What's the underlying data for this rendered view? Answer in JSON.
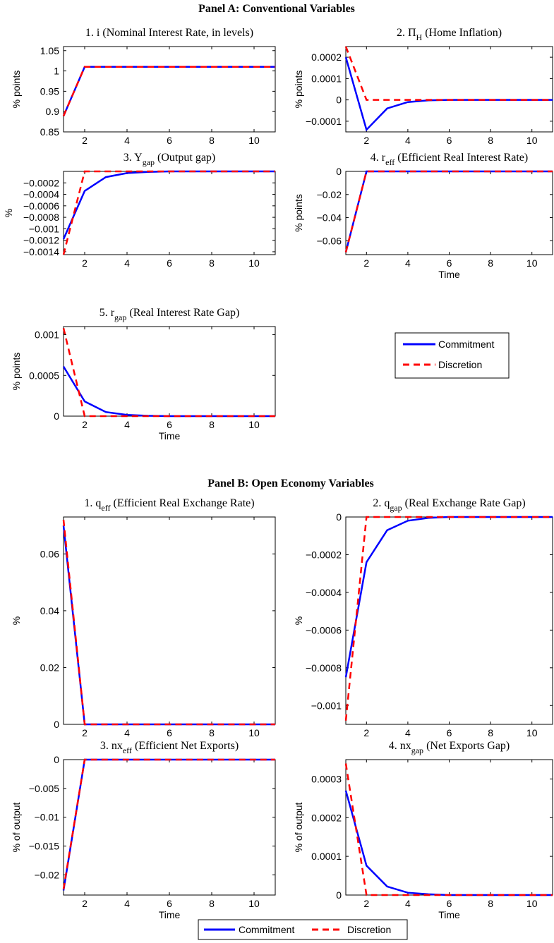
{
  "panels": [
    {
      "title": "Panel A: Conventional Variables"
    },
    {
      "title": "Panel B: Open Economy Variables"
    }
  ],
  "legend": {
    "commitment": "Commitment",
    "discretion": "Discretion"
  },
  "colors": {
    "commitment": "#0000ff",
    "discretion": "#ff0000",
    "axis": "#000000"
  },
  "chart_data": [
    {
      "type": "line",
      "title": {
        "prefix": "1. i ",
        "sub": "",
        "suffix": " (Nominal Interest Rate, in levels)"
      },
      "xlabel": "",
      "ylabel": "% points",
      "xlim": [
        1,
        11
      ],
      "ylim": [
        0.85,
        1.06
      ],
      "xticks": [
        2,
        4,
        6,
        8,
        10
      ],
      "yticks": [
        0.85,
        0.9,
        0.95,
        1,
        1.05
      ],
      "yticklabels": [
        "0.85",
        "0.9",
        "0.95",
        "1",
        "1.05"
      ],
      "x": [
        1,
        2,
        3,
        4,
        5,
        6,
        7,
        8,
        9,
        10,
        11
      ],
      "series": [
        {
          "name": "Commitment",
          "values": [
            0.889,
            1.01,
            1.01,
            1.01,
            1.01,
            1.01,
            1.01,
            1.01,
            1.01,
            1.01,
            1.01
          ]
        },
        {
          "name": "Discretion",
          "values": [
            0.889,
            1.01,
            1.01,
            1.01,
            1.01,
            1.01,
            1.01,
            1.01,
            1.01,
            1.01,
            1.01
          ]
        }
      ]
    },
    {
      "type": "line",
      "title": {
        "prefix": "2. Π",
        "sub": "H",
        "suffix": " (Home Inflation)"
      },
      "xlabel": "",
      "ylabel": "% points",
      "xlim": [
        1,
        11
      ],
      "ylim": [
        -0.00015,
        0.00025
      ],
      "xticks": [
        2,
        4,
        6,
        8,
        10
      ],
      "yticks": [
        -0.0001,
        0,
        0.0001,
        0.0002
      ],
      "yticklabels": [
        "−0.0001",
        "0",
        "0.0001",
        "0.0002"
      ],
      "x": [
        1,
        2,
        3,
        4,
        5,
        6,
        7,
        8,
        9,
        10,
        11
      ],
      "series": [
        {
          "name": "Commitment",
          "values": [
            0.0002,
            -0.00014,
            -4e-05,
            -1e-05,
            -2e-06,
            0,
            0,
            0,
            0,
            0,
            0
          ]
        },
        {
          "name": "Discretion",
          "values": [
            0.00025,
            0,
            0,
            0,
            0,
            0,
            0,
            0,
            0,
            0,
            0
          ]
        }
      ]
    },
    {
      "type": "line",
      "title": {
        "prefix": "3. Y",
        "sub": "gap",
        "suffix": " (Output gap)"
      },
      "xlabel": "",
      "ylabel": "%",
      "xlim": [
        1,
        11
      ],
      "ylim": [
        -0.00145,
        0
      ],
      "xticks": [
        2,
        4,
        6,
        8,
        10
      ],
      "yticks": [
        -0.0014,
        -0.0012,
        -0.001,
        -0.0008,
        -0.0006,
        -0.0004,
        -0.0002
      ],
      "yticklabels": [
        "−0.0014",
        "−0.0012",
        "−0.001",
        "−0.0008",
        "−0.0006",
        "−0.0004",
        "−0.0002"
      ],
      "x": [
        1,
        2,
        3,
        4,
        5,
        6,
        7,
        8,
        9,
        10,
        11
      ],
      "series": [
        {
          "name": "Commitment",
          "values": [
            -0.00118,
            -0.00034,
            -0.0001,
            -3e-05,
            -1e-05,
            0,
            0,
            0,
            0,
            0,
            0
          ]
        },
        {
          "name": "Discretion",
          "values": [
            -0.00145,
            0,
            0,
            0,
            0,
            0,
            0,
            0,
            0,
            0,
            0
          ]
        }
      ]
    },
    {
      "type": "line",
      "title": {
        "prefix": "4. r",
        "sub": "eff",
        "suffix": " (Efficient Real Interest Rate)"
      },
      "xlabel": "Time",
      "ylabel": "% points",
      "xlim": [
        1,
        11
      ],
      "ylim": [
        -0.072,
        0
      ],
      "xticks": [
        2,
        4,
        6,
        8,
        10
      ],
      "yticks": [
        -0.06,
        -0.04,
        -0.02,
        0
      ],
      "yticklabels": [
        "−0.06",
        "−0.04",
        "−0.02",
        "0"
      ],
      "x": [
        1,
        2,
        3,
        4,
        5,
        6,
        7,
        8,
        9,
        10,
        11
      ],
      "series": [
        {
          "name": "Commitment",
          "values": [
            -0.07,
            0,
            0,
            0,
            0,
            0,
            0,
            0,
            0,
            0,
            0
          ]
        },
        {
          "name": "Discretion",
          "values": [
            -0.07,
            0,
            0,
            0,
            0,
            0,
            0,
            0,
            0,
            0,
            0
          ]
        }
      ]
    },
    {
      "type": "line",
      "title": {
        "prefix": "5. r",
        "sub": "gap",
        "suffix": " (Real Interest Rate Gap)"
      },
      "xlabel": "Time",
      "ylabel": "% points",
      "xlim": [
        1,
        11
      ],
      "ylim": [
        0,
        0.0011
      ],
      "xticks": [
        2,
        4,
        6,
        8,
        10
      ],
      "yticks": [
        0,
        0.0005,
        0.001
      ],
      "yticklabels": [
        "0",
        "0.0005",
        "0.001"
      ],
      "x": [
        1,
        2,
        3,
        4,
        5,
        6,
        7,
        8,
        9,
        10,
        11
      ],
      "series": [
        {
          "name": "Commitment",
          "values": [
            0.00061,
            0.00018,
            5e-05,
            1.5e-05,
            4e-06,
            0,
            0,
            0,
            0,
            0,
            0
          ]
        },
        {
          "name": "Discretion",
          "values": [
            0.00108,
            0,
            0,
            0,
            0,
            0,
            0,
            0,
            0,
            0,
            0
          ]
        }
      ]
    },
    {
      "type": "line",
      "title": {
        "prefix": "1. q",
        "sub": "eff",
        "suffix": " (Efficient Real Exchange Rate)"
      },
      "xlabel": "",
      "ylabel": "%",
      "xlim": [
        1,
        11
      ],
      "ylim": [
        0,
        0.073
      ],
      "xticks": [
        2,
        4,
        6,
        8,
        10
      ],
      "yticks": [
        0,
        0.02,
        0.04,
        0.06
      ],
      "yticklabels": [
        "0",
        "0.02",
        "0.04",
        "0.06"
      ],
      "x": [
        1,
        2,
        3,
        4,
        5,
        6,
        7,
        8,
        9,
        10,
        11
      ],
      "series": [
        {
          "name": "Commitment",
          "values": [
            0.07,
            0,
            0,
            0,
            0,
            0,
            0,
            0,
            0,
            0,
            0
          ]
        },
        {
          "name": "Discretion",
          "values": [
            0.072,
            0,
            0,
            0,
            0,
            0,
            0,
            0,
            0,
            0,
            0
          ]
        }
      ]
    },
    {
      "type": "line",
      "title": {
        "prefix": "2. q",
        "sub": "gap",
        "suffix": " (Real Exchange Rate Gap)"
      },
      "xlabel": "",
      "ylabel": "%",
      "xlim": [
        1,
        11
      ],
      "ylim": [
        -0.0011,
        0
      ],
      "xticks": [
        2,
        4,
        6,
        8,
        10
      ],
      "yticks": [
        -0.001,
        -0.0008,
        -0.0006,
        -0.0004,
        -0.0002,
        0
      ],
      "yticklabels": [
        "−0.001",
        "−0.0008",
        "−0.0006",
        "−0.0004",
        "−0.0002",
        "0"
      ],
      "x": [
        1,
        2,
        3,
        4,
        5,
        6,
        7,
        8,
        9,
        10,
        11
      ],
      "series": [
        {
          "name": "Commitment",
          "values": [
            -0.00085,
            -0.00024,
            -7e-05,
            -2e-05,
            -5e-06,
            0,
            0,
            0,
            0,
            0,
            0
          ]
        },
        {
          "name": "Discretion",
          "values": [
            -0.00108,
            0,
            0,
            0,
            0,
            0,
            0,
            0,
            0,
            0,
            0
          ]
        }
      ]
    },
    {
      "type": "line",
      "title": {
        "prefix": "3. nx",
        "sub": "eff",
        "suffix": " (Efficient Net Exports)"
      },
      "xlabel": "Time",
      "ylabel": "% of output",
      "xlim": [
        1,
        11
      ],
      "ylim": [
        -0.0235,
        0
      ],
      "xticks": [
        2,
        4,
        6,
        8,
        10
      ],
      "yticks": [
        -0.02,
        -0.015,
        -0.01,
        -0.005,
        0
      ],
      "yticklabels": [
        "−0.02",
        "−0.015",
        "−0.01",
        "−0.005",
        "0"
      ],
      "x": [
        1,
        2,
        3,
        4,
        5,
        6,
        7,
        8,
        9,
        10,
        11
      ],
      "series": [
        {
          "name": "Commitment",
          "values": [
            -0.0227,
            0,
            0,
            0,
            0,
            0,
            0,
            0,
            0,
            0,
            0
          ]
        },
        {
          "name": "Discretion",
          "values": [
            -0.0225,
            0,
            0,
            0,
            0,
            0,
            0,
            0,
            0,
            0,
            0
          ]
        }
      ]
    },
    {
      "type": "line",
      "title": {
        "prefix": "4. nx",
        "sub": "gap",
        "suffix": " (Net Exports Gap)"
      },
      "xlabel": "Time",
      "ylabel": "% of output",
      "xlim": [
        1,
        11
      ],
      "ylim": [
        0,
        0.00035
      ],
      "xticks": [
        2,
        4,
        6,
        8,
        10
      ],
      "yticks": [
        0,
        0.0001,
        0.0002,
        0.0003
      ],
      "yticklabels": [
        "0",
        "0.0001",
        "0.0002",
        "0.0003"
      ],
      "x": [
        1,
        2,
        3,
        4,
        5,
        6,
        7,
        8,
        9,
        10,
        11
      ],
      "series": [
        {
          "name": "Commitment",
          "values": [
            0.00027,
            7.6e-05,
            2.2e-05,
            6e-06,
            2e-06,
            0,
            0,
            0,
            0,
            0,
            0
          ]
        },
        {
          "name": "Discretion",
          "values": [
            0.00034,
            0,
            0,
            0,
            0,
            0,
            0,
            0,
            0,
            0,
            0
          ]
        }
      ]
    }
  ]
}
